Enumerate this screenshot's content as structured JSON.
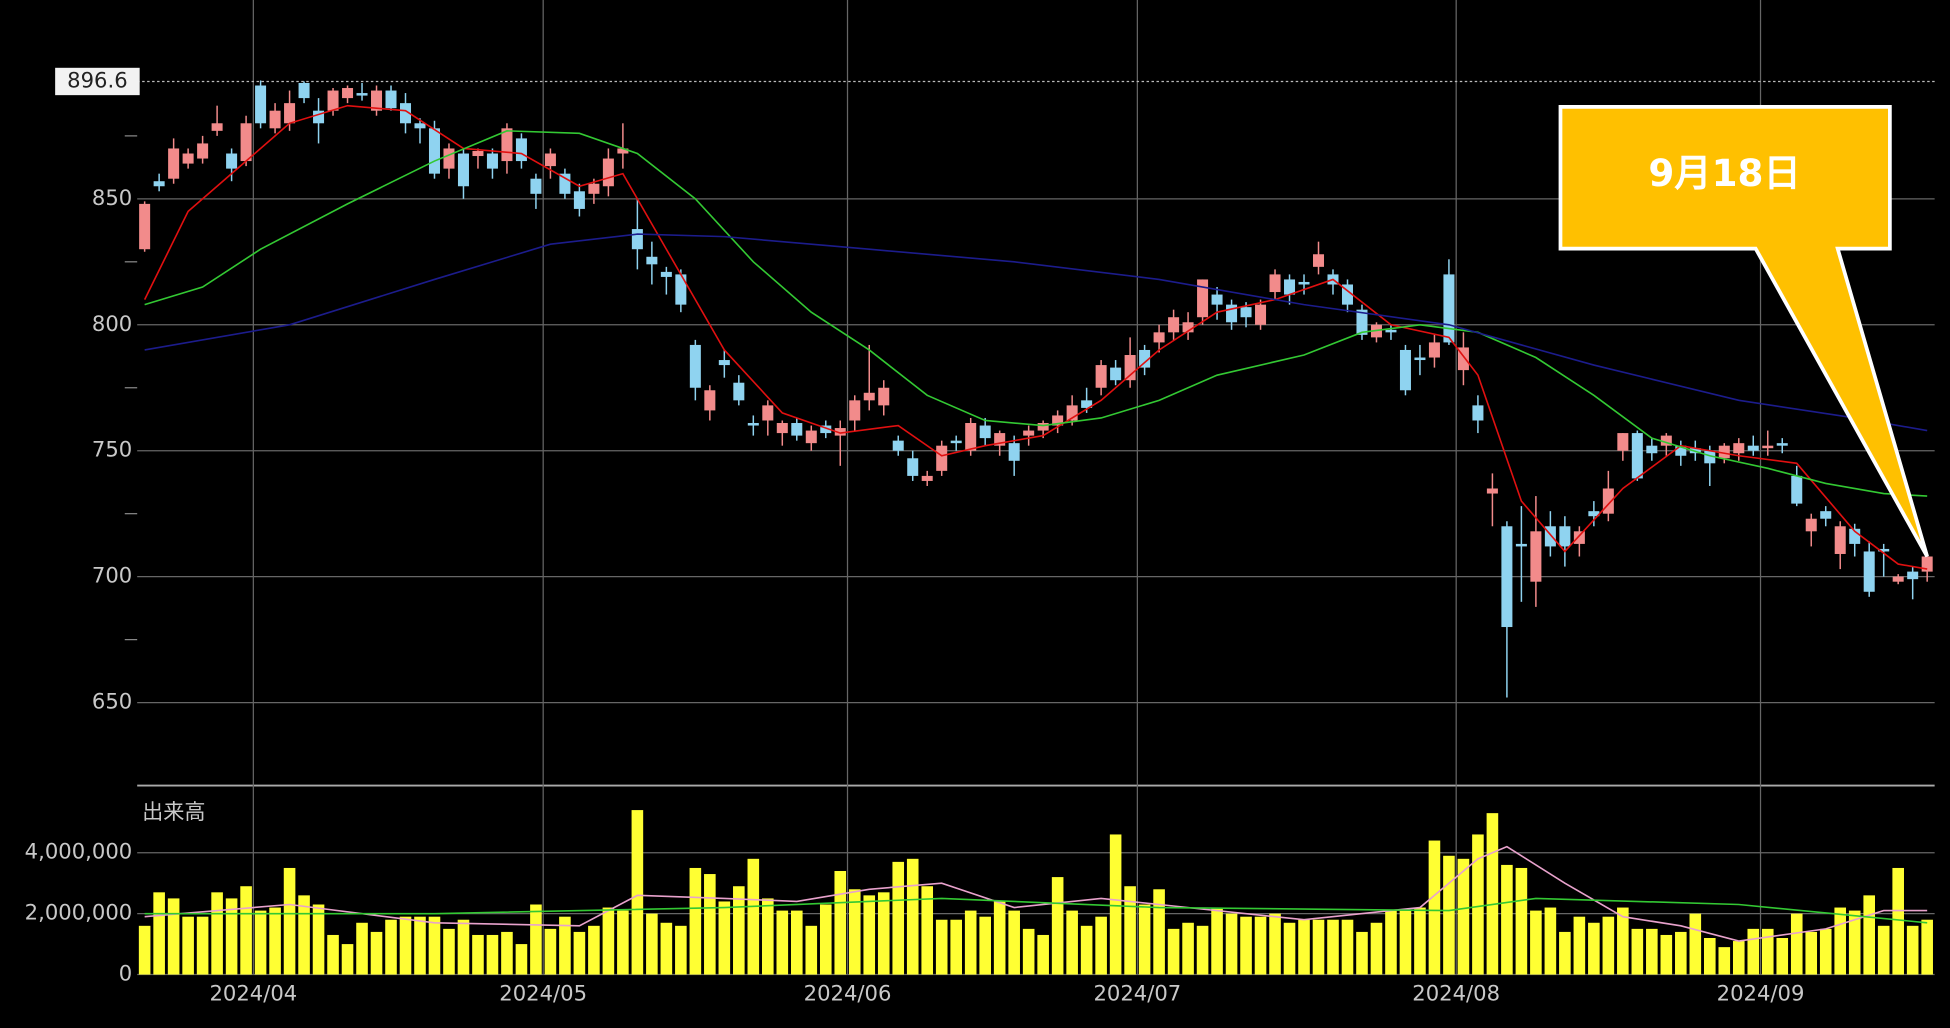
{
  "chart_data": {
    "type": "candlestick",
    "candles": [
      [
        830,
        849,
        829,
        848
      ],
      [
        857,
        860,
        853,
        855
      ],
      [
        858,
        874,
        856,
        870
      ],
      [
        864,
        870,
        862,
        868
      ],
      [
        866,
        875,
        864,
        872
      ],
      [
        877,
        887,
        875,
        880
      ],
      [
        868,
        870,
        857,
        862
      ],
      [
        865,
        883,
        863,
        880
      ],
      [
        895,
        897,
        878,
        880
      ],
      [
        878,
        888,
        876,
        885
      ],
      [
        880,
        893,
        877,
        888
      ],
      [
        896,
        896.6,
        888,
        890
      ],
      [
        885,
        890,
        872,
        880
      ],
      [
        885,
        894,
        883,
        893
      ],
      [
        890,
        895,
        888,
        894
      ],
      [
        892,
        896,
        889,
        891
      ],
      [
        885,
        895,
        883,
        893
      ],
      [
        893,
        895,
        885,
        886
      ],
      [
        888,
        892,
        876,
        880
      ],
      [
        880,
        882,
        872,
        878
      ],
      [
        878,
        881,
        858,
        860
      ],
      [
        862,
        872,
        858,
        870
      ],
      [
        868,
        870,
        850,
        855
      ],
      [
        867,
        870,
        862,
        869
      ],
      [
        868,
        870,
        858,
        862
      ],
      [
        865,
        880,
        860,
        878
      ],
      [
        874,
        876,
        862,
        865
      ],
      [
        858,
        860,
        846,
        852
      ],
      [
        863,
        870,
        858,
        868
      ],
      [
        860,
        862,
        850,
        852
      ],
      [
        853,
        856,
        843,
        846
      ],
      [
        852,
        858,
        848,
        856
      ],
      [
        855,
        870,
        851,
        866
      ],
      [
        868,
        880,
        862,
        870
      ],
      [
        838,
        850,
        822,
        830
      ],
      [
        827,
        833,
        816,
        824
      ],
      [
        821,
        823,
        812,
        819
      ],
      [
        820,
        822,
        805,
        808
      ],
      [
        792,
        794,
        770,
        775
      ],
      [
        766,
        776,
        762,
        774
      ],
      [
        786,
        790,
        779,
        784
      ],
      [
        777,
        780,
        768,
        770
      ],
      [
        761,
        764,
        756,
        760
      ],
      [
        762,
        770,
        756,
        768
      ],
      [
        757,
        762,
        752,
        761
      ],
      [
        761,
        763,
        754,
        756
      ],
      [
        753,
        760,
        750,
        758
      ],
      [
        760,
        762,
        755,
        757
      ],
      [
        756,
        762,
        744,
        759
      ],
      [
        762,
        772,
        758,
        770
      ],
      [
        770,
        792,
        766,
        773
      ],
      [
        768,
        778,
        764,
        775
      ],
      [
        754,
        756,
        748,
        750
      ],
      [
        747,
        750,
        738,
        740
      ],
      [
        738,
        742,
        736,
        740
      ],
      [
        742,
        754,
        740,
        752
      ],
      [
        754,
        756,
        750,
        753
      ],
      [
        750,
        763,
        748,
        761
      ],
      [
        760,
        763,
        752,
        755
      ],
      [
        752,
        758,
        748,
        757
      ],
      [
        753,
        756,
        740,
        746
      ],
      [
        756,
        760,
        752,
        758
      ],
      [
        758,
        762,
        755,
        761
      ],
      [
        760,
        766,
        757,
        764
      ],
      [
        762,
        772,
        760,
        768
      ],
      [
        770,
        775,
        765,
        767
      ],
      [
        775,
        786,
        772,
        784
      ],
      [
        783,
        786,
        776,
        778
      ],
      [
        778,
        795,
        775,
        788
      ],
      [
        790,
        792,
        780,
        783
      ],
      [
        793,
        800,
        789,
        797
      ],
      [
        797,
        806,
        794,
        803
      ],
      [
        797,
        805,
        794,
        801
      ],
      [
        803,
        818,
        800,
        818
      ],
      [
        812,
        815,
        802,
        808
      ],
      [
        808,
        810,
        798,
        801
      ],
      [
        807,
        809,
        799,
        803
      ],
      [
        800,
        810,
        798,
        808
      ],
      [
        813,
        822,
        810,
        820
      ],
      [
        818,
        820,
        808,
        812
      ],
      [
        817,
        820,
        812,
        816
      ],
      [
        823,
        833,
        820,
        828
      ],
      [
        820,
        822,
        812,
        816
      ],
      [
        816,
        818,
        805,
        808
      ],
      [
        806,
        808,
        794,
        796
      ],
      [
        795,
        801,
        793,
        800
      ],
      [
        798,
        800,
        794,
        797
      ],
      [
        790,
        792,
        772,
        774
      ],
      [
        787,
        792,
        780,
        786
      ],
      [
        787,
        796,
        783,
        793
      ],
      [
        820,
        826,
        792,
        793
      ],
      [
        782,
        797,
        776,
        791
      ],
      [
        768,
        772,
        757,
        762
      ],
      [
        733,
        741,
        720,
        735
      ],
      [
        720,
        722,
        652,
        680
      ],
      [
        713,
        728,
        690,
        712
      ],
      [
        698,
        732,
        688,
        718
      ],
      [
        720,
        726,
        708,
        712
      ],
      [
        720,
        724,
        704,
        712
      ],
      [
        713,
        720,
        708,
        718
      ],
      [
        726,
        730,
        720,
        724
      ],
      [
        725,
        742,
        722,
        735
      ],
      [
        750,
        757,
        746,
        757
      ],
      [
        757,
        758,
        738,
        739
      ],
      [
        752,
        755,
        746,
        749
      ],
      [
        752,
        757,
        748,
        756
      ],
      [
        752,
        754,
        744,
        748
      ],
      [
        751,
        754,
        746,
        749
      ],
      [
        750,
        752,
        736,
        745
      ],
      [
        747,
        753,
        745,
        752
      ],
      [
        749,
        755,
        746,
        753
      ],
      [
        752,
        756,
        748,
        750
      ],
      [
        751,
        758,
        748,
        752
      ],
      [
        753,
        755,
        749,
        752
      ],
      [
        740,
        744,
        728,
        729
      ],
      [
        718,
        725,
        712,
        723
      ],
      [
        726,
        728,
        720,
        723
      ],
      [
        709,
        722,
        703,
        720
      ],
      [
        719,
        721,
        708,
        713
      ],
      [
        710,
        714,
        692,
        694
      ],
      [
        711,
        713,
        700,
        710
      ],
      [
        698,
        701,
        697,
        700
      ],
      [
        702,
        704,
        691,
        699
      ],
      [
        702,
        708,
        698,
        708
      ]
    ],
    "up_color": "#f28b8b",
    "down_color": "#8fd3f0",
    "ylim": [
      620,
      925
    ],
    "yticks": [
      650,
      700,
      750,
      800,
      850
    ],
    "yminor": [
      675,
      725,
      775,
      825,
      875
    ],
    "grid": true,
    "max_marker": 896.6,
    "xticks": [
      {
        "value": 8,
        "label": "2024/04"
      },
      {
        "value": 28,
        "label": "2024/05"
      },
      {
        "value": 49,
        "label": "2024/06"
      },
      {
        "value": 69,
        "label": "2024/07"
      },
      {
        "value": 91,
        "label": "2024/08"
      },
      {
        "value": 112,
        "label": "2024/09"
      }
    ],
    "moving_averages": [
      {
        "color": "#e01010",
        "x": [
          0,
          3,
          6,
          10,
          14,
          18,
          22,
          26,
          30,
          33,
          36,
          40,
          44,
          48,
          52,
          55,
          58,
          62,
          66,
          70,
          74,
          78,
          82,
          86,
          90,
          92,
          95,
          98,
          102,
          106,
          110,
          114,
          118,
          121,
          123
        ],
        "values": [
          810,
          845,
          860,
          880,
          887,
          885,
          870,
          868,
          855,
          860,
          830,
          790,
          765,
          757,
          760,
          748,
          752,
          756,
          770,
          790,
          805,
          810,
          818,
          800,
          795,
          780,
          730,
          710,
          735,
          752,
          748,
          745,
          718,
          705,
          703
        ]
      },
      {
        "color": "#33c833",
        "x": [
          0,
          4,
          8,
          14,
          20,
          25,
          30,
          34,
          38,
          42,
          46,
          50,
          54,
          58,
          62,
          66,
          70,
          74,
          80,
          84,
          88,
          92,
          96,
          100,
          104,
          108,
          112,
          116,
          120,
          123
        ],
        "values": [
          808,
          815,
          830,
          848,
          865,
          877,
          876,
          868,
          850,
          825,
          805,
          790,
          772,
          762,
          760,
          763,
          770,
          780,
          788,
          797,
          800,
          797,
          787,
          772,
          755,
          748,
          743,
          737,
          733,
          732
        ]
      },
      {
        "color": "#1c1c8c",
        "x": [
          0,
          10,
          20,
          28,
          34,
          40,
          50,
          60,
          70,
          80,
          90,
          95,
          100,
          110,
          118,
          123
        ],
        "values": [
          790,
          800,
          818,
          832,
          836,
          835,
          830,
          825,
          818,
          808,
          800,
          792,
          784,
          770,
          763,
          758
        ]
      }
    ],
    "volume": {
      "label": "出来高",
      "color": "#ffff33",
      "values": [
        1600000,
        2700000,
        2500000,
        1900000,
        1900000,
        2700000,
        2500000,
        2900000,
        2100000,
        2200000,
        3500000,
        2600000,
        2300000,
        1300000,
        1000000,
        1700000,
        1400000,
        1800000,
        1900000,
        1900000,
        1900000,
        1500000,
        1800000,
        1300000,
        1300000,
        1400000,
        1000000,
        2300000,
        1500000,
        1900000,
        1400000,
        1600000,
        2200000,
        2100000,
        5400000,
        2000000,
        1700000,
        1600000,
        3500000,
        3300000,
        2400000,
        2900000,
        3800000,
        2500000,
        2100000,
        2100000,
        1600000,
        2300000,
        3400000,
        2800000,
        2600000,
        2700000,
        3700000,
        3800000,
        2900000,
        1800000,
        1800000,
        2100000,
        1900000,
        2400000,
        2100000,
        1500000,
        1300000,
        3200000,
        2100000,
        1600000,
        1900000,
        4600000,
        2900000,
        2300000,
        2800000,
        1500000,
        1700000,
        1600000,
        2200000,
        2000000,
        1900000,
        1900000,
        2000000,
        1700000,
        1800000,
        1800000,
        1800000,
        1800000,
        1400000,
        1700000,
        2100000,
        2100000,
        2200000,
        4400000,
        3900000,
        3800000,
        4600000,
        5300000,
        3600000,
        3500000,
        2100000,
        2200000,
        1400000,
        1900000,
        1700000,
        1900000,
        2200000,
        1500000,
        1500000,
        1300000,
        1400000,
        2000000,
        1200000,
        900000,
        1100000,
        1500000,
        1500000,
        1200000,
        2000000,
        1400000,
        1500000,
        2200000,
        2100000,
        2600000,
        1600000,
        3500000,
        1600000,
        1800000
      ],
      "ylim": [
        0,
        6000000
      ],
      "yticks": [
        0,
        {
          "value": 2000000,
          "label": "2,000,000"
        },
        {
          "value": 4000000,
          "label": "4,000,000"
        }
      ],
      "moving_averages": [
        {
          "color": "#e8a2cc",
          "x": [
            0,
            10,
            20,
            30,
            34,
            40,
            45,
            50,
            55,
            60,
            66,
            70,
            80,
            88,
            92,
            94,
            98,
            102,
            106,
            110,
            116,
            120,
            123
          ],
          "values": [
            1900000,
            2300000,
            1700000,
            1600000,
            2600000,
            2500000,
            2400000,
            2800000,
            3000000,
            2200000,
            2500000,
            2300000,
            1800000,
            2200000,
            3800000,
            4200000,
            3000000,
            1900000,
            1600000,
            1100000,
            1500000,
            2100000,
            2100000
          ]
        },
        {
          "color": "#33c833",
          "x": [
            0,
            20,
            40,
            55,
            70,
            90,
            96,
            110,
            123
          ],
          "values": [
            2000000,
            2000000,
            2200000,
            2500000,
            2200000,
            2100000,
            2500000,
            2300000,
            1700000
          ]
        }
      ]
    },
    "callout": "9月18日"
  }
}
